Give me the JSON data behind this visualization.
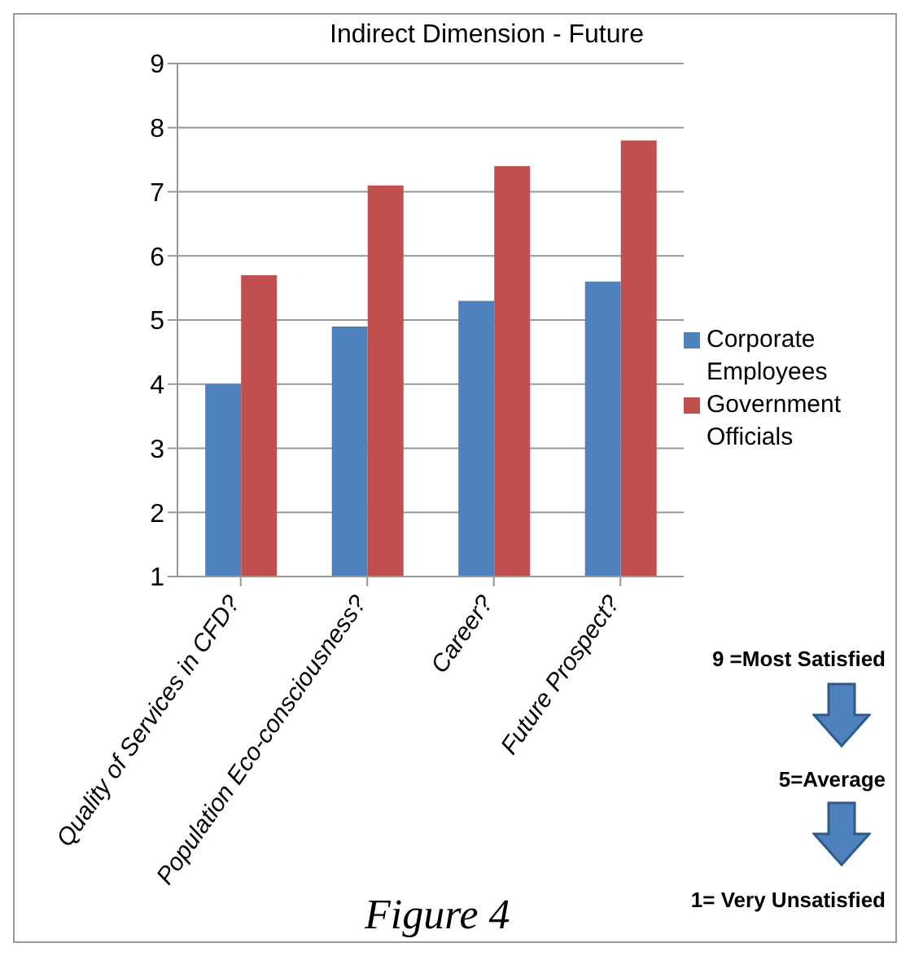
{
  "chart_data": {
    "type": "bar",
    "title": "Indirect Dimension  -  Future",
    "categories": [
      "Quality of Services in CFD?",
      "Population Eco-consciousness?",
      "Career?",
      "Future Prospect?"
    ],
    "series": [
      {
        "name": "Corporate Employees",
        "color": "#4f81bd",
        "values": [
          4.0,
          4.9,
          5.3,
          5.6
        ]
      },
      {
        "name": "Government Officials",
        "color": "#c0504d",
        "values": [
          5.7,
          7.1,
          7.4,
          7.8
        ]
      }
    ],
    "ylim": [
      1,
      9
    ],
    "yticks": [
      1,
      2,
      3,
      4,
      5,
      6,
      7,
      8,
      9
    ],
    "grid": "y",
    "legend": "right",
    "annotations": [
      "9 =Most Satisfied",
      "5=Average",
      "1= Very Unsatisfied",
      "Figure 4"
    ]
  }
}
